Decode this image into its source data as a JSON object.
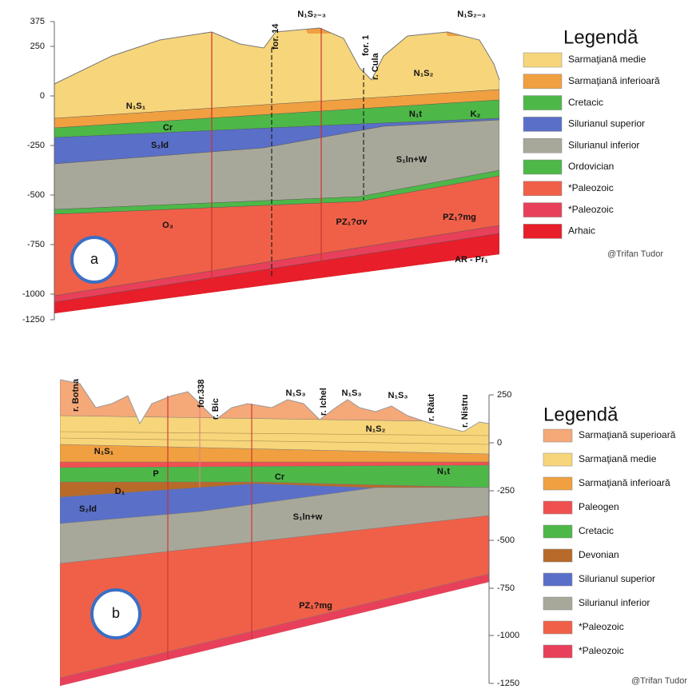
{
  "panel_a": {
    "axis_ticks": [
      375,
      250,
      0,
      -250,
      -500,
      -750,
      -1000,
      -1250
    ],
    "labels": [
      "N₁S₂₋₃",
      "N₁S₂₋₃",
      "for. 14",
      "for. 1",
      "r. Cula",
      "N₁S₂",
      "N₁S₁",
      "Cr",
      "N₁t",
      "K₂",
      "S₂ld",
      "S₁ln+W",
      "O₃",
      "PZ₁?σv",
      "PZ₁?mg",
      "AR - Pr₁"
    ],
    "badge": "a",
    "legend": {
      "title": "Legendă",
      "items": [
        {
          "label": "Sarmaţiană medie",
          "color": "#f7d57a"
        },
        {
          "label": "Sarmaţiană inferioară",
          "color": "#f0a040"
        },
        {
          "label": "Cretacic",
          "color": "#4db848"
        },
        {
          "label": "Silurianul superior",
          "color": "#5a6fc8"
        },
        {
          "label": "Silurianul inferior",
          "color": "#a8a89a"
        },
        {
          "label": "Ordovician",
          "color": "#4db848"
        },
        {
          "label": "*Paleozoic",
          "color": "#f06048"
        },
        {
          "label": "*Paleozoic",
          "color": "#e8405a"
        },
        {
          "label": "Arhaic",
          "color": "#e81e2a"
        }
      ]
    },
    "credit": "@Trifan Tudor"
  },
  "panel_b": {
    "axis_ticks": [
      250,
      0,
      -250,
      -500,
      -750,
      -1000,
      -1250
    ],
    "labels": [
      "r. Botna",
      "for.338",
      "r. Bic",
      "N₁S₃",
      "r. Ichel",
      "N₁S₃",
      "N₁S₃",
      "r. Răut",
      "r. Nistru",
      "N₁S₂",
      "N₁S₁",
      "P",
      "Cr",
      "N₁t",
      "D₁",
      "S₂ld",
      "S₁ln+w",
      "PZ₁?mg"
    ],
    "badge": "b",
    "legend": {
      "title": "Legendă",
      "items": [
        {
          "label": "Sarmaţiană superioară",
          "color": "#f5a878"
        },
        {
          "label": "Sarmaţiană medie",
          "color": "#f7d57a"
        },
        {
          "label": "Sarmaţiană inferioară",
          "color": "#f0a040"
        },
        {
          "label": "Paleogen",
          "color": "#f05050"
        },
        {
          "label": "Cretacic",
          "color": "#4db848"
        },
        {
          "label": "Devonian",
          "color": "#b86a2a"
        },
        {
          "label": "Silurianul superior",
          "color": "#5a6fc8"
        },
        {
          "label": "Silurianul inferior",
          "color": "#a8a89a"
        },
        {
          "label": "*Paleozoic",
          "color": "#f06048"
        },
        {
          "label": "*Paleozoic",
          "color": "#e8405a"
        }
      ]
    },
    "credit": "@Trifan Tudor"
  }
}
